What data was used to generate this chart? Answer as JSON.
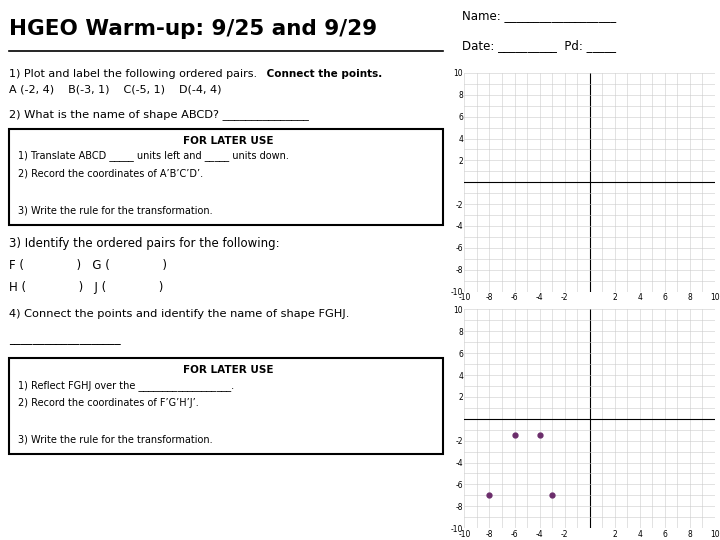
{
  "title": "HGEO Warm-up: 9/25 and 9/29",
  "q1_text": "1) Plot and label the following ordered pairs.",
  "q1_bold": " Connect the points.",
  "q1_points_text": "A (-2, 4)    B(-3, 1)    C(-5, 1)    D(-4, 4)",
  "q2_text": "2) What is the name of shape ABCD? _______________",
  "for_later_1_title": "FOR LATER USE",
  "for_later_1_lines": [
    "1) Translate ABCD _____ units left and _____ units down.",
    "2) Record the coordinates of A’B’C’D’.",
    "",
    "3) Write the rule for the transformation."
  ],
  "q3_text": "3) Identify the ordered pairs for the following:",
  "q3_pairs": [
    "F (              )   G (              )",
    "H (              )   J (              )"
  ],
  "q4_text": "4) Connect the points and identify the name of shape FGHJ.",
  "q4_line": "___________________",
  "for_later_2_title": "FOR LATER USE",
  "for_later_2_lines": [
    "1) Reflect FGHJ over the ___________________.",
    "2) Record the coordinates of F’G’H’J’.",
    "",
    "3) Write the rule for the transformation."
  ],
  "grid1_range": [
    -10,
    10
  ],
  "grid2_range": [
    -10,
    10
  ],
  "points_fghj": [
    [
      -6,
      -1.5
    ],
    [
      -4,
      -1.5
    ],
    [
      -8,
      -7
    ],
    [
      -3,
      -7
    ]
  ],
  "point_color": "#6B2D6B",
  "bg_color": "#ffffff",
  "grid_color": "#cccccc",
  "axis_color": "#000000"
}
